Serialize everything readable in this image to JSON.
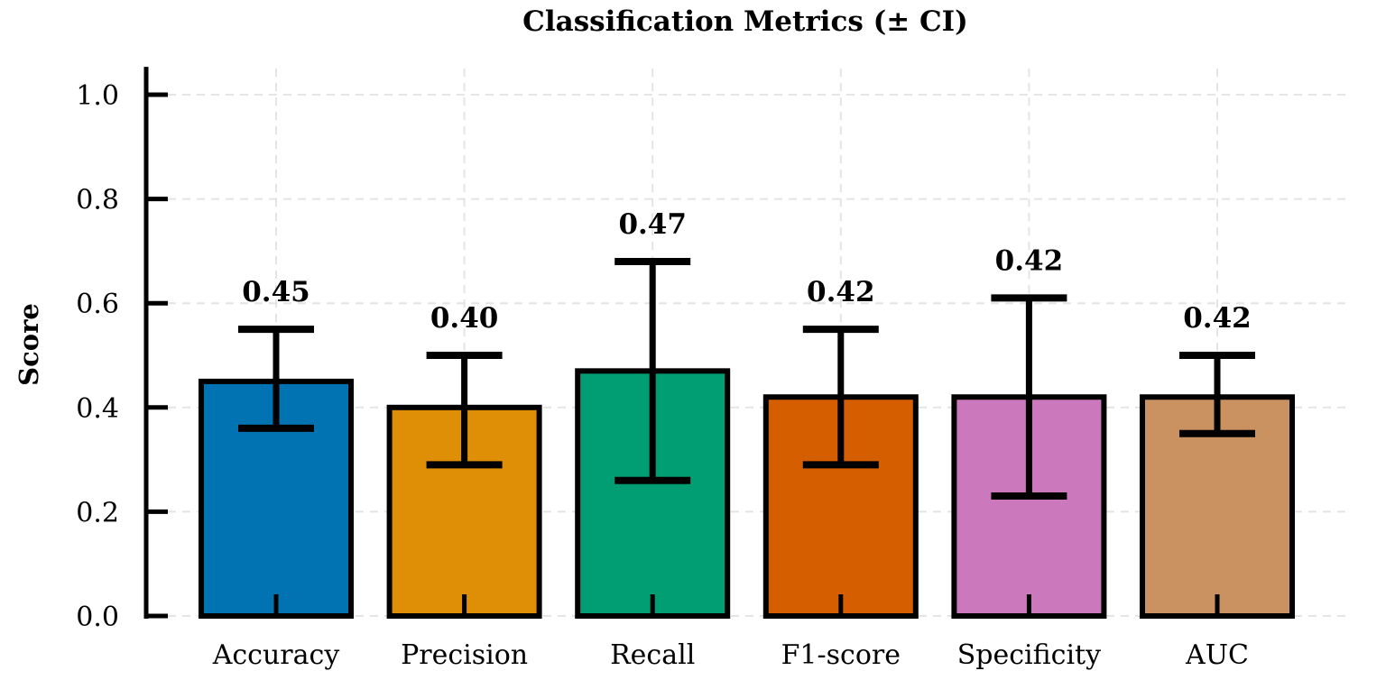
{
  "chart_data": {
    "type": "bar",
    "title": "Classification Metrics (± CI)",
    "xlabel": "",
    "ylabel": "Score",
    "categories": [
      "Accuracy",
      "Precision",
      "Recall",
      "F1-score",
      "Specificity",
      "AUC"
    ],
    "values": [
      0.45,
      0.4,
      0.47,
      0.42,
      0.42,
      0.42
    ],
    "value_labels": [
      "0.45",
      "0.40",
      "0.47",
      "0.42",
      "0.42",
      "0.42"
    ],
    "ci_lower": [
      0.36,
      0.29,
      0.26,
      0.29,
      0.23,
      0.35
    ],
    "ci_upper": [
      0.55,
      0.5,
      0.68,
      0.55,
      0.61,
      0.5
    ],
    "colors": [
      "#0173b2",
      "#de8f05",
      "#029e73",
      "#d55e00",
      "#cc78bc",
      "#ca9161"
    ],
    "edge_color": "#000000",
    "ylim": [
      0.0,
      1.05
    ],
    "yticks": [
      0.0,
      0.2,
      0.4,
      0.6,
      0.8,
      1.0
    ],
    "ytick_labels": [
      "0.0",
      "0.2",
      "0.4",
      "0.6",
      "0.8",
      "1.0"
    ],
    "grid": true,
    "legend": false
  }
}
